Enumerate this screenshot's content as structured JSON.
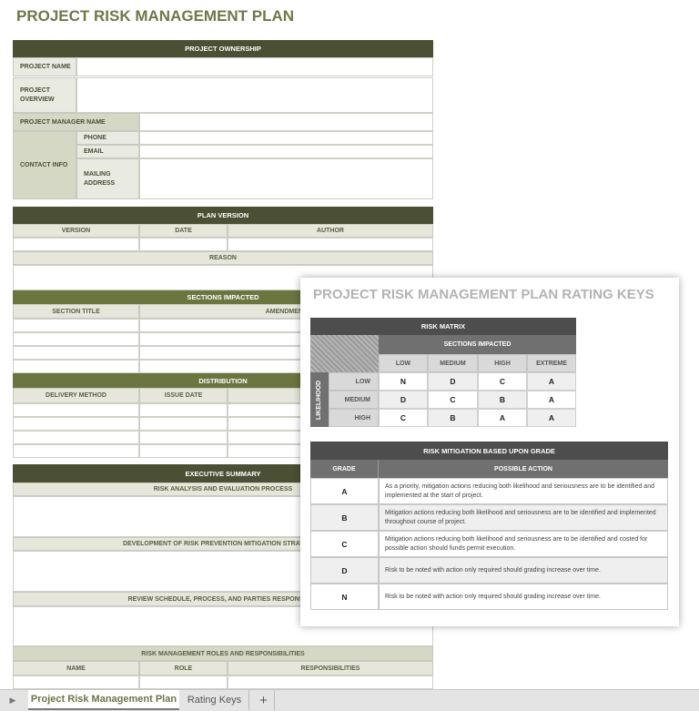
{
  "title": "PROJECT RISK MANAGEMENT PLAN",
  "ownership": {
    "header": "PROJECT OWNERSHIP",
    "project_name": "PROJECT NAME",
    "project_overview": "PROJECT OVERVIEW",
    "manager_name": "PROJECT MANAGER NAME",
    "contact_info": "CONTACT INFO",
    "phone": "PHONE",
    "email": "EMAIL",
    "mailing": "MAILING ADDRESS"
  },
  "plan_version": {
    "header": "PLAN VERSION",
    "version": "VERSION",
    "date": "DATE",
    "author": "AUTHOR",
    "reason": "REASON"
  },
  "sections": {
    "header": "SECTIONS IMPACTED",
    "section_title": "SECTION TITLE",
    "amendment": "AMENDMENT"
  },
  "distribution": {
    "header": "DISTRIBUTION",
    "delivery": "DELIVERY METHOD",
    "issue_date": "ISSUE DATE"
  },
  "exec": {
    "header": "EXECUTIVE SUMMARY",
    "risk_analysis": "RISK ANALYSIS AND EVALUATION PROCESS",
    "development": "DEVELOPMENT OF RISK PREVENTION MITIGATION STRATEGIES",
    "review": "REVIEW SCHEDULE, PROCESS, AND PARTIES RESPONSIBLE",
    "roles": "RISK MANAGEMENT ROLES AND RESPONSIBILITIES",
    "name": "NAME",
    "role": "ROLE",
    "responsibilities": "RESPONSIBILITIES"
  },
  "rating": {
    "title": "PROJECT RISK MANAGEMENT PLAN RATING KEYS",
    "matrix_header": "RISK MATRIX",
    "sections_impacted": "SECTIONS IMPACTED",
    "likelihood": "LIKELIHOOD",
    "columns": [
      "LOW",
      "MEDIUM",
      "HIGH",
      "EXTREME"
    ],
    "rows": [
      {
        "label": "LOW",
        "values": [
          "N",
          "D",
          "C",
          "A"
        ]
      },
      {
        "label": "MEDIUM",
        "values": [
          "D",
          "C",
          "B",
          "A"
        ]
      },
      {
        "label": "HIGH",
        "values": [
          "C",
          "B",
          "A",
          "A"
        ]
      }
    ],
    "mitigation_header": "RISK MITIGATION BASED UPON GRADE",
    "grade": "GRADE",
    "possible_action": "POSSIBLE ACTION",
    "grades": [
      {
        "grade": "A",
        "action": "As a priority, mitigation actions reducing both likelihood and seriousness are to be identified and implemented at the start of project."
      },
      {
        "grade": "B",
        "action": "Mitigation actions reducing both likelihood and seriousness are to be identified and implemented throughout course of project."
      },
      {
        "grade": "C",
        "action": "Mitigation actions reducing both likelihood and seriousness are to be identified and costed for possible action should funds permit execution."
      },
      {
        "grade": "D",
        "action": "Risk to be noted with action only required should grading increase over time."
      },
      {
        "grade": "N",
        "action": "Risk to be noted with action only required should grading increase over time."
      }
    ]
  },
  "tabs": [
    {
      "label": "Project Risk Management Plan",
      "active": true
    },
    {
      "label": "Rating Keys",
      "active": false
    }
  ],
  "add_tab": "+"
}
